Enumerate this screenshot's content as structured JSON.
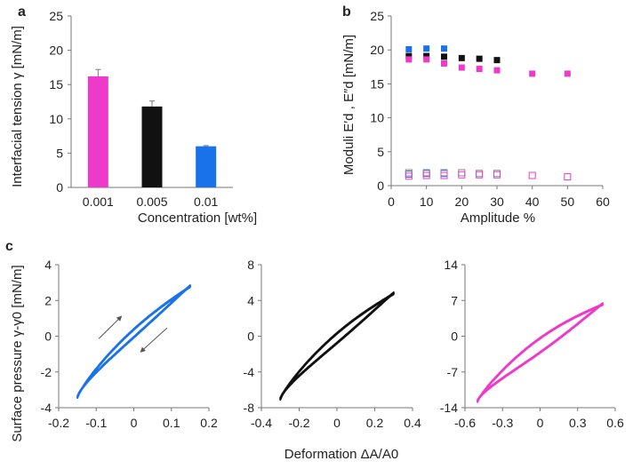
{
  "panel_labels": [
    "a",
    "b",
    "c"
  ],
  "colors": {
    "magenta": "#ee3aca",
    "black": "#111111",
    "blue": "#1a72ea",
    "axis": "#777777"
  },
  "chart_data": [
    {
      "id": "a",
      "type": "bar",
      "categories": [
        "0.001",
        "0.005",
        "0.01"
      ],
      "values": [
        16.2,
        11.8,
        6.0
      ],
      "errors": [
        1.0,
        0.8,
        0.1
      ],
      "colors": [
        "#ee3aca",
        "#111111",
        "#1a72ea"
      ],
      "xlabel": "Concentration [wt%]",
      "ylabel": "Interfacial tension γ [mN/m]",
      "ylim": [
        0,
        25
      ],
      "yticks": [
        "0",
        "5",
        "10",
        "15",
        "20",
        "25"
      ]
    },
    {
      "id": "b",
      "type": "scatter",
      "xlabel": "Amplitude %",
      "ylabel": "Moduli E′d , E″d [mN/m]",
      "xlim": [
        0,
        60
      ],
      "ylim": [
        0,
        25
      ],
      "xticks": [
        "0",
        "10",
        "20",
        "30",
        "40",
        "50",
        "60"
      ],
      "yticks": [
        "0",
        "5",
        "10",
        "15",
        "20",
        "25"
      ],
      "series": [
        {
          "name": "E' blue",
          "marker": "filled",
          "color": "#1a72ea",
          "x": [
            5,
            10,
            15
          ],
          "y": [
            20.1,
            20.2,
            20.2
          ]
        },
        {
          "name": "E' black",
          "marker": "filled",
          "color": "#111111",
          "x": [
            5,
            10,
            15,
            20,
            25,
            30
          ],
          "y": [
            19.1,
            19.1,
            19.0,
            18.8,
            18.7,
            18.5
          ]
        },
        {
          "name": "E' magenta",
          "marker": "filled",
          "color": "#ee3aca",
          "x": [
            5,
            10,
            15,
            20,
            25,
            30,
            40,
            50
          ],
          "y": [
            18.6,
            18.6,
            18.0,
            17.4,
            17.2,
            17.0,
            16.5,
            16.5
          ]
        },
        {
          "name": "E'' blue",
          "marker": "open",
          "color": "#1a72ea",
          "x": [
            5,
            10,
            15
          ],
          "y": [
            1.7,
            1.8,
            1.8
          ]
        },
        {
          "name": "E'' black",
          "marker": "open",
          "color": "#888888",
          "x": [
            5,
            10,
            15,
            20,
            25,
            30
          ],
          "y": [
            1.9,
            1.9,
            1.9,
            1.9,
            1.8,
            1.8
          ]
        },
        {
          "name": "E'' magenta",
          "marker": "open",
          "color": "#ee3aca",
          "x": [
            5,
            10,
            15,
            20,
            25,
            30,
            40,
            50
          ],
          "y": [
            1.4,
            1.5,
            1.5,
            1.6,
            1.6,
            1.6,
            1.5,
            1.3
          ]
        }
      ]
    },
    {
      "id": "c1",
      "type": "line",
      "color": "#1a72ea",
      "xlim": [
        -0.2,
        0.2
      ],
      "ylim": [
        -4,
        4
      ],
      "xticks": [
        "-0.2",
        "-0.1",
        "0",
        "0.1",
        "0.2"
      ],
      "yticks": [
        "-4",
        "-2",
        "0",
        "2",
        "4"
      ],
      "x_range": [
        -0.15,
        0.15
      ],
      "y_range": [
        -3.4,
        2.8
      ],
      "loop_width": 0.25,
      "arrows": [
        "up-right along upper branch",
        "down-left along lower branch"
      ]
    },
    {
      "id": "c2",
      "type": "line",
      "color": "#111111",
      "xlim": [
        -0.4,
        0.4
      ],
      "ylim": [
        -8,
        8
      ],
      "xticks": [
        "-0.4",
        "-0.2",
        "0",
        "0.2",
        "0.4"
      ],
      "yticks": [
        "-8",
        "-4",
        "0",
        "4",
        "8"
      ],
      "x_range": [
        -0.3,
        0.3
      ],
      "y_range": [
        -7.0,
        4.8
      ],
      "loop_width": 0.6
    },
    {
      "id": "c3",
      "type": "line",
      "color": "#ee3aca",
      "xlim": [
        -0.6,
        0.6
      ],
      "ylim": [
        -14,
        14
      ],
      "xticks": [
        "-0.6",
        "-0.3",
        "0",
        "0.3",
        "0.6"
      ],
      "yticks": [
        "-14",
        "-7",
        "0",
        "7",
        "14"
      ],
      "x_range": [
        -0.5,
        0.5
      ],
      "y_range": [
        -12.7,
        6.3
      ],
      "loop_width": 1.5
    }
  ],
  "shared_labels": {
    "c_ylabel": "Surface pressure γ-γ0 [mN/m]",
    "c_xlabel": "Deformation ΔA/A0"
  }
}
